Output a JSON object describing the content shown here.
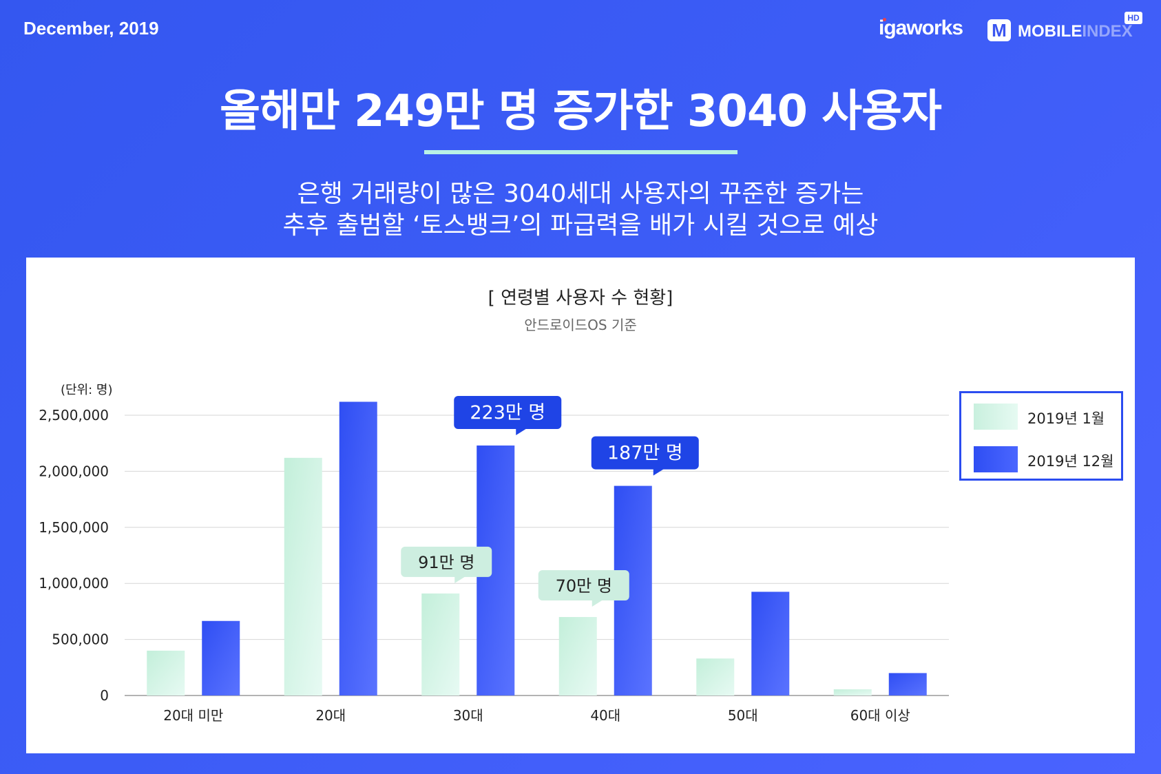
{
  "header": {
    "date": "December, 2019",
    "logo_igaworks": "igaworks",
    "logo_mobileindex_main": "MOBILE",
    "logo_mobileindex_faded": "INDEX",
    "logo_mobileindex_badge": "HD"
  },
  "headline": "올해만 249만 명 증가한 3040 사용자",
  "subtitle_line1": "은행 거래량이 많은 3040세대 사용자의 꾸준한 증가는",
  "subtitle_line2": "추후 출범할 ‘토스뱅크’의 파급력을 배가 시킬 것으로 예상",
  "chart_data": {
    "type": "bar",
    "title": "[ 연령별 사용자 수 현황]",
    "subtitle": "안드로이드OS 기준",
    "unit_label": "(단위: 명)",
    "categories": [
      "20대 미만",
      "20대",
      "30대",
      "40대",
      "50대",
      "60대 이상"
    ],
    "series": [
      {
        "name": "2019년 1월",
        "values": [
          400000,
          2120000,
          910000,
          700000,
          330000,
          55000
        ],
        "color": "#cdf2e1"
      },
      {
        "name": "2019년 12월",
        "values": [
          665000,
          2620000,
          2230000,
          1870000,
          925000,
          200000
        ],
        "color": "#3553f5"
      }
    ],
    "ylim": [
      0,
      2500000
    ],
    "yticks": [
      0,
      500000,
      1000000,
      1500000,
      2000000,
      2500000
    ],
    "ytick_labels": [
      "0",
      "500,000",
      "1,000,000",
      "1,500,000",
      "2,000,000",
      "2,500,000"
    ],
    "grid": true,
    "legend_position": "top-right",
    "annotations": [
      {
        "text": "223만 명",
        "category": "30대",
        "series": 1,
        "value": 2230000,
        "style": "dark"
      },
      {
        "text": "187만 명",
        "category": "40대",
        "series": 1,
        "value": 1870000,
        "style": "dark"
      },
      {
        "text": "91만 명",
        "category": "30대",
        "series": 0,
        "value": 910000,
        "style": "light"
      },
      {
        "text": "70만 명",
        "category": "40대",
        "series": 0,
        "value": 700000,
        "style": "light"
      }
    ]
  }
}
